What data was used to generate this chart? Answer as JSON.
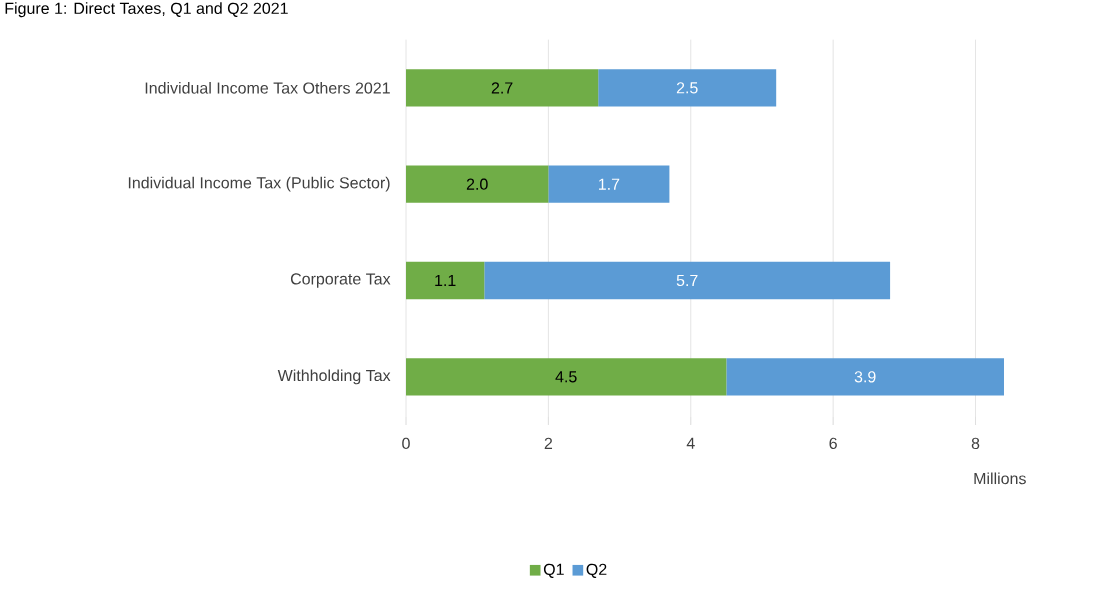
{
  "chart_data": {
    "type": "bar",
    "orientation": "horizontal",
    "stacked": true,
    "title": "Figure 1: Direct Taxes, Q1 and Q2 2021",
    "xlabel": "Millions",
    "categories": [
      "Individual Income Tax Others 2021",
      "Individual Income Tax (Public Sector)",
      "Corporate Tax",
      "Withholding Tax"
    ],
    "series": [
      {
        "name": "Q1",
        "color": "#70ad47",
        "values": [
          2.7,
          2.0,
          1.1,
          4.5
        ],
        "value_labels": [
          "2.7",
          "2.0",
          "1.1",
          "4.5"
        ]
      },
      {
        "name": "Q2",
        "color": "#5b9bd5",
        "values": [
          2.5,
          1.7,
          5.7,
          3.9
        ],
        "value_labels": [
          "2.5",
          "1.7",
          "5.7",
          "3.9"
        ]
      }
    ],
    "xlim": [
      0,
      8.4
    ],
    "xticks": [
      0,
      2,
      4,
      6,
      8
    ],
    "grid": "x",
    "legend": "bottom"
  }
}
